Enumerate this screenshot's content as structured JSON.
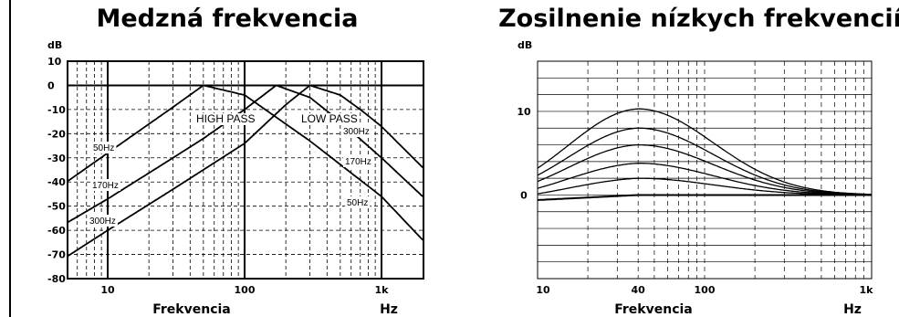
{
  "chart_data": [
    {
      "type": "line",
      "title": "Medzná frekvencia",
      "ylabel": "dB",
      "xlabel": "Frekvencia",
      "xunit": "Hz",
      "xscale": "log",
      "xlim": [
        5,
        2000
      ],
      "ylim": [
        -80,
        10
      ],
      "xticks": [
        {
          "value": 10,
          "label": "10"
        },
        {
          "value": 100,
          "label": "100"
        },
        {
          "value": 1000,
          "label": "1k"
        }
      ],
      "yticks": [
        10,
        0,
        -10,
        -20,
        -30,
        -40,
        -50,
        -60,
        -70,
        -80
      ],
      "grid": true,
      "annotations": [
        "HIGH PASS",
        "LOW PASS",
        "50Hz",
        "170Hz",
        "300Hz",
        "300Hz",
        "170Hz",
        "50Hz"
      ],
      "series": [
        {
          "label": "50Hz",
          "kind": "highpass",
          "x": [
            5,
            10,
            20,
            30,
            50,
            100,
            2000
          ],
          "y": [
            -40,
            -28,
            -16,
            -9,
            0,
            0,
            0
          ]
        },
        {
          "label": "170Hz",
          "kind": "highpass",
          "x": [
            5,
            10,
            30,
            50,
            100,
            170,
            2000
          ],
          "y": [
            -57,
            -47,
            -30,
            -22,
            -10,
            0,
            0
          ]
        },
        {
          "label": "300Hz",
          "kind": "highpass",
          "x": [
            5,
            10,
            30,
            100,
            200,
            300,
            2000
          ],
          "y": [
            -71,
            -60,
            -43,
            -24,
            -8,
            0,
            0
          ]
        },
        {
          "label": "300Hz",
          "kind": "lowpass",
          "x": [
            5,
            300,
            500,
            700,
            1000,
            2000
          ],
          "y": [
            0,
            0,
            -4,
            -10,
            -17,
            -34
          ]
        },
        {
          "label": "170Hz",
          "kind": "lowpass",
          "x": [
            5,
            170,
            300,
            500,
            1000,
            2000
          ],
          "y": [
            0,
            0,
            -5,
            -15,
            -30,
            -46
          ]
        },
        {
          "label": "50Hz",
          "kind": "lowpass",
          "x": [
            5,
            50,
            100,
            300,
            1000,
            2000
          ],
          "y": [
            0,
            0,
            -4,
            -23,
            -46,
            -64
          ]
        }
      ]
    },
    {
      "type": "line",
      "title": "Zosilnenie nízkych frekvencií",
      "ylabel": "dB",
      "xlabel": "Frekvencia",
      "xunit": "Hz",
      "xscale": "log",
      "xlim": [
        10,
        1000
      ],
      "ylim": [
        -10,
        16
      ],
      "xticks": [
        {
          "value": 10,
          "label": "10"
        },
        {
          "value": 40,
          "label": "40"
        },
        {
          "value": 100,
          "label": "100"
        },
        {
          "value": 1000,
          "label": "1k"
        }
      ],
      "yticks": [
        {
          "value": 10,
          "label": "10"
        },
        {
          "value": 0,
          "label": "0"
        }
      ],
      "grid": true,
      "series": [
        {
          "peak_db": 0
        },
        {
          "peak_db": 2
        },
        {
          "peak_db": 3.8
        },
        {
          "peak_db": 6
        },
        {
          "peak_db": 8
        },
        {
          "peak_db": 10.3
        }
      ],
      "bass_shelf": {
        "low_edge_db": -0.6,
        "center_hz": 40,
        "settle_db": 0
      }
    }
  ]
}
